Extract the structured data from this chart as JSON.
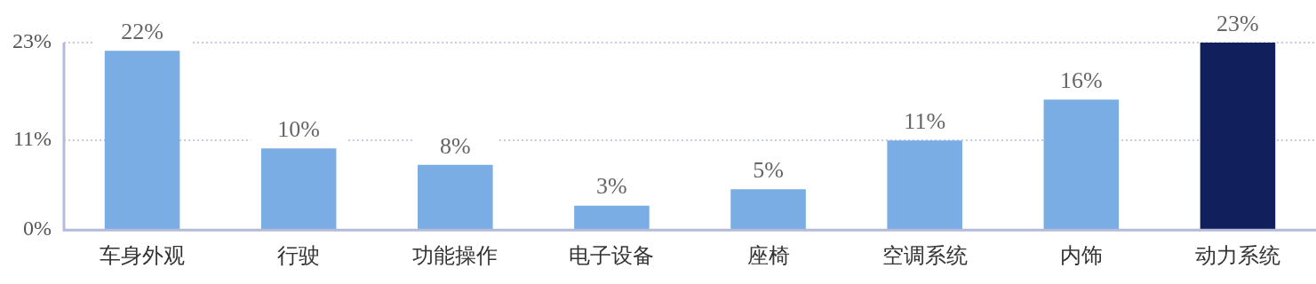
{
  "chart_data": {
    "type": "bar",
    "categories": [
      "车身外观",
      "行驶",
      "功能操作",
      "电子设备",
      "座椅",
      "空调系统",
      "内饰",
      "动力系统"
    ],
    "values": [
      22,
      10,
      8,
      3,
      5,
      11,
      16,
      23
    ],
    "colors": [
      "#7aade3",
      "#7aade3",
      "#7aade3",
      "#7aade3",
      "#7aade3",
      "#7aade3",
      "#7aade3",
      "#111f5c"
    ],
    "value_labels": [
      "22%",
      "10%",
      "8%",
      "3%",
      "5%",
      "11%",
      "16%",
      "23%"
    ],
    "ylim": [
      0,
      23
    ],
    "yticks": [
      {
        "value": 0,
        "label": "0%"
      },
      {
        "value": 11,
        "label": "11%"
      },
      {
        "value": 23,
        "label": "23%"
      }
    ],
    "grid": "y",
    "legend": false
  }
}
